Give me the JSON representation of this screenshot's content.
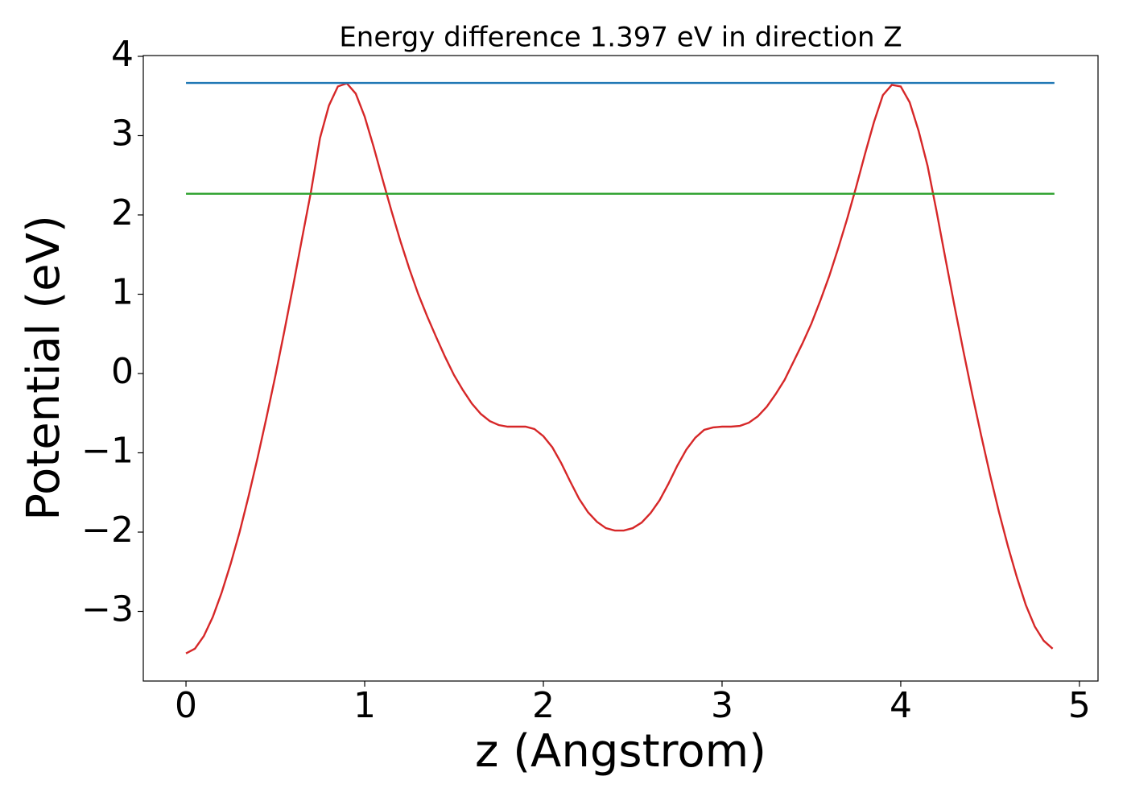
{
  "chart_data": {
    "type": "line",
    "title": "Energy difference 1.397 eV in direction Z",
    "xlabel": "z (Angstrom)",
    "ylabel": "Potential (eV)",
    "xlim": [
      -0.239,
      5.104
    ],
    "ylim": [
      -3.878,
      4.01
    ],
    "xticks": [
      0,
      1,
      2,
      3,
      4,
      5
    ],
    "yticks": [
      {
        "value": -3,
        "label": "−3"
      },
      {
        "value": -2,
        "label": "−2"
      },
      {
        "value": -1,
        "label": "−1"
      },
      0,
      1,
      2,
      3,
      4
    ],
    "series": [
      {
        "color": "#d62728",
        "x": [
          0,
          0.05,
          0.1,
          0.15,
          0.2,
          0.25,
          0.3,
          0.35,
          0.4,
          0.45,
          0.5,
          0.55,
          0.6,
          0.65,
          0.7,
          0.75,
          0.8,
          0.85,
          0.9,
          0.95,
          1.0,
          1.05,
          1.1,
          1.15,
          1.2,
          1.25,
          1.3,
          1.35,
          1.4,
          1.45,
          1.5,
          1.55,
          1.6,
          1.65,
          1.7,
          1.75,
          1.8,
          1.85,
          1.9,
          1.95,
          2.0,
          2.05,
          2.1,
          2.15,
          2.2,
          2.25,
          2.3,
          2.35,
          2.4,
          2.45,
          2.5,
          2.55,
          2.6,
          2.65,
          2.7,
          2.75,
          2.8,
          2.85,
          2.9,
          2.95,
          3.0,
          3.05,
          3.1,
          3.15,
          3.2,
          3.25,
          3.3,
          3.35,
          3.4,
          3.45,
          3.5,
          3.55,
          3.6,
          3.65,
          3.7,
          3.75,
          3.8,
          3.85,
          3.9,
          3.95,
          4.0,
          4.05,
          4.1,
          4.15,
          4.2,
          4.25,
          4.3,
          4.35,
          4.4,
          4.45,
          4.5,
          4.55,
          4.6,
          4.65,
          4.7,
          4.75,
          4.8,
          4.85
        ],
        "values": [
          -3.53,
          -3.47,
          -3.31,
          -3.07,
          -2.76,
          -2.4,
          -2.0,
          -1.55,
          -1.07,
          -0.56,
          -0.03,
          0.53,
          1.11,
          1.71,
          2.3,
          2.97,
          3.38,
          3.62,
          3.66,
          3.53,
          3.24,
          2.86,
          2.45,
          2.05,
          1.67,
          1.32,
          1.0,
          0.72,
          0.46,
          0.21,
          -0.02,
          -0.21,
          -0.38,
          -0.51,
          -0.6,
          -0.65,
          -0.67,
          -0.67,
          -0.67,
          -0.7,
          -0.79,
          -0.93,
          -1.13,
          -1.36,
          -1.58,
          -1.75,
          -1.87,
          -1.95,
          -1.98,
          -1.98,
          -1.95,
          -1.88,
          -1.76,
          -1.6,
          -1.39,
          -1.16,
          -0.96,
          -0.81,
          -0.71,
          -0.68,
          -0.67,
          -0.67,
          -0.66,
          -0.62,
          -0.54,
          -0.42,
          -0.26,
          -0.08,
          0.15,
          0.38,
          0.63,
          0.92,
          1.23,
          1.58,
          1.95,
          2.35,
          2.77,
          3.17,
          3.51,
          3.64,
          3.62,
          3.42,
          3.06,
          2.62,
          2.05,
          1.45,
          0.86,
          0.29,
          -0.26,
          -0.78,
          -1.28,
          -1.75,
          -2.18,
          -2.57,
          -2.92,
          -3.19,
          -3.37,
          -3.47
        ]
      },
      {
        "color": "#1f77b4",
        "x": [
          0,
          4.86
        ],
        "values": [
          3.664,
          3.664
        ]
      },
      {
        "color": "#2ca02c",
        "x": [
          0,
          4.86
        ],
        "values": [
          2.267,
          2.267
        ]
      }
    ]
  }
}
